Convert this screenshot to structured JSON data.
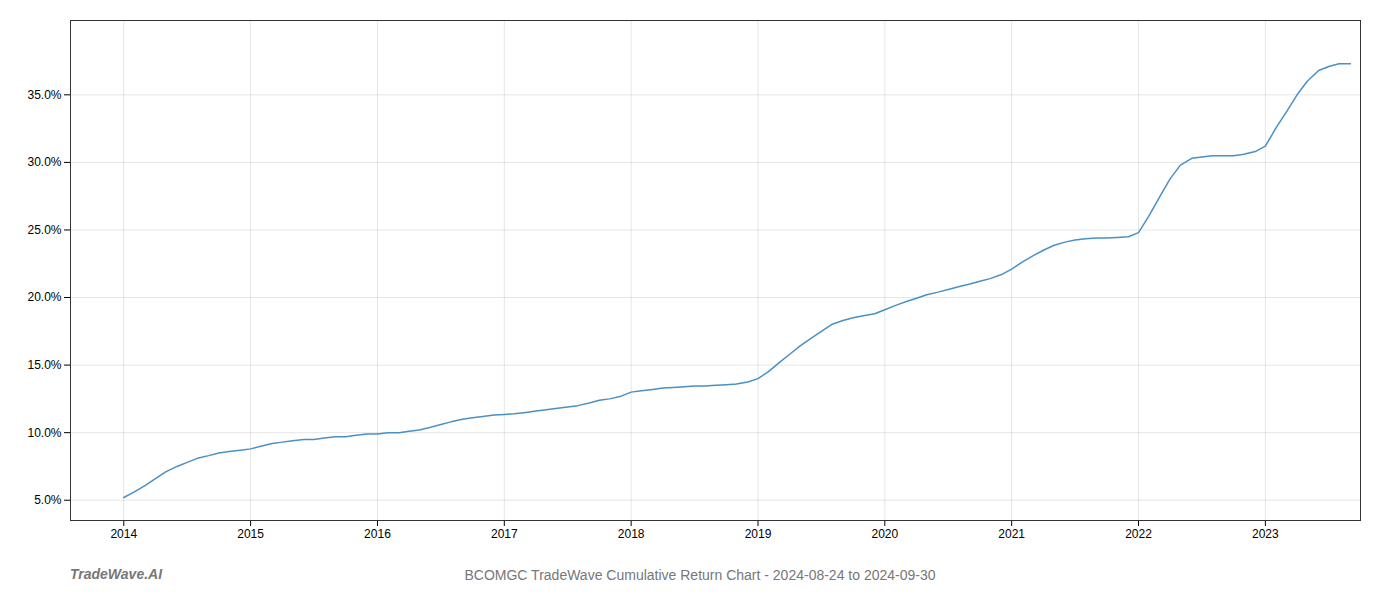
{
  "chart_data": {
    "type": "line",
    "title": "BCOMGC TradeWave Cumulative Return Chart - 2024-08-24 to 2024-09-30",
    "annotations": [
      {
        "text": "TradeWave.AI"
      }
    ],
    "color": "#4a90c4",
    "grid": true,
    "x": [
      2014.0,
      2014.08,
      2014.17,
      2014.25,
      2014.33,
      2014.42,
      2014.5,
      2014.58,
      2014.67,
      2014.75,
      2014.83,
      2014.92,
      2015.0,
      2015.08,
      2015.17,
      2015.25,
      2015.33,
      2015.42,
      2015.5,
      2015.58,
      2015.67,
      2015.75,
      2015.83,
      2015.92,
      2016.0,
      2016.08,
      2016.17,
      2016.25,
      2016.33,
      2016.42,
      2016.5,
      2016.58,
      2016.67,
      2016.75,
      2016.83,
      2016.92,
      2017.0,
      2017.08,
      2017.17,
      2017.25,
      2017.33,
      2017.42,
      2017.5,
      2017.58,
      2017.67,
      2017.75,
      2017.83,
      2017.92,
      2018.0,
      2018.08,
      2018.17,
      2018.25,
      2018.33,
      2018.42,
      2018.5,
      2018.58,
      2018.67,
      2018.75,
      2018.83,
      2018.92,
      2019.0,
      2019.08,
      2019.17,
      2019.25,
      2019.33,
      2019.42,
      2019.5,
      2019.58,
      2019.67,
      2019.75,
      2019.83,
      2019.92,
      2020.0,
      2020.08,
      2020.17,
      2020.25,
      2020.33,
      2020.42,
      2020.5,
      2020.58,
      2020.67,
      2020.75,
      2020.83,
      2020.92,
      2021.0,
      2021.08,
      2021.17,
      2021.25,
      2021.33,
      2021.42,
      2021.5,
      2021.58,
      2021.67,
      2021.75,
      2021.83,
      2021.92,
      2022.0,
      2022.08,
      2022.17,
      2022.25,
      2022.33,
      2022.42,
      2022.5,
      2022.58,
      2022.67,
      2022.75,
      2022.83,
      2022.92,
      2023.0,
      2023.08,
      2023.17,
      2023.25,
      2023.33,
      2023.42,
      2023.5,
      2023.58,
      2023.67
    ],
    "values": [
      5.2,
      5.6,
      6.1,
      6.6,
      7.1,
      7.5,
      7.8,
      8.1,
      8.3,
      8.5,
      8.6,
      8.7,
      8.8,
      9.0,
      9.2,
      9.3,
      9.4,
      9.5,
      9.5,
      9.6,
      9.7,
      9.7,
      9.8,
      9.9,
      9.9,
      10.0,
      10.0,
      10.1,
      10.2,
      10.4,
      10.6,
      10.8,
      11.0,
      11.1,
      11.2,
      11.3,
      11.35,
      11.4,
      11.5,
      11.6,
      11.7,
      11.8,
      11.9,
      12.0,
      12.2,
      12.4,
      12.5,
      12.7,
      13.0,
      13.1,
      13.2,
      13.3,
      13.35,
      13.4,
      13.45,
      13.45,
      13.5,
      13.55,
      13.6,
      13.75,
      14.0,
      14.5,
      15.2,
      15.8,
      16.4,
      17.0,
      17.5,
      18.0,
      18.3,
      18.5,
      18.65,
      18.8,
      19.1,
      19.4,
      19.7,
      19.95,
      20.2,
      20.4,
      20.6,
      20.8,
      21.0,
      21.2,
      21.4,
      21.7,
      22.1,
      22.6,
      23.1,
      23.5,
      23.85,
      24.1,
      24.25,
      24.35,
      24.4,
      24.4,
      24.45,
      24.5,
      24.8,
      26.0,
      27.5,
      28.8,
      29.8,
      30.3,
      30.4,
      30.5,
      30.5,
      30.5,
      30.6,
      30.8,
      31.2,
      32.5,
      33.8,
      35.0,
      36.0,
      36.8,
      37.1,
      37.3,
      37.3
    ],
    "xlim": [
      2013.58,
      2023.75
    ],
    "xticks": [
      2014,
      2015,
      2016,
      2017,
      2018,
      2019,
      2020,
      2021,
      2022,
      2023
    ],
    "ylim": [
      3.5,
      40.5
    ],
    "yticks": [
      {
        "value": 5.0,
        "label": "5.0%"
      },
      {
        "value": 10.0,
        "label": "10.0%"
      },
      {
        "value": 15.0,
        "label": "15.0%"
      },
      {
        "value": 20.0,
        "label": "20.0%"
      },
      {
        "value": 25.0,
        "label": "25.0%"
      },
      {
        "value": 30.0,
        "label": "30.0%"
      },
      {
        "value": 35.0,
        "label": "35.0%"
      }
    ]
  }
}
